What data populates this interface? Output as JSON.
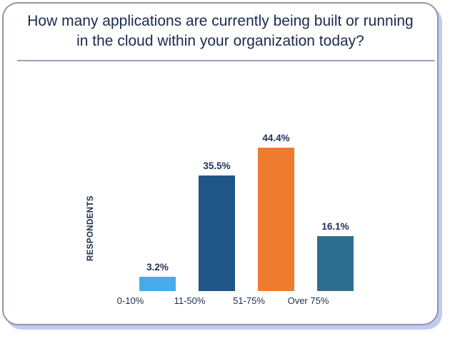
{
  "chart_data": {
    "type": "bar",
    "title": "How many applications are currently being built or running in the cloud within your organization today?",
    "xlabel": "",
    "ylabel": "RESPONDENTS",
    "categories": [
      "0-10%",
      "11-50%",
      "51-75%",
      "Over 75%"
    ],
    "values": [
      3.2,
      35.5,
      44.4,
      16.1
    ],
    "value_labels": [
      "3.2%",
      "35.5%",
      "44.4%",
      "16.1%"
    ],
    "bar_colors": [
      "#47aae9",
      "#1f5588",
      "#ef7b2f",
      "#2e6e8f"
    ],
    "grid": false,
    "legend": false,
    "axis_lines": false,
    "value_unit": "%"
  },
  "card": {
    "border_color": "#8e96a9",
    "shadow_color": "#c2cbf3",
    "divider_color": "#9ca3b4",
    "title_color": "#1b2b4d"
  }
}
